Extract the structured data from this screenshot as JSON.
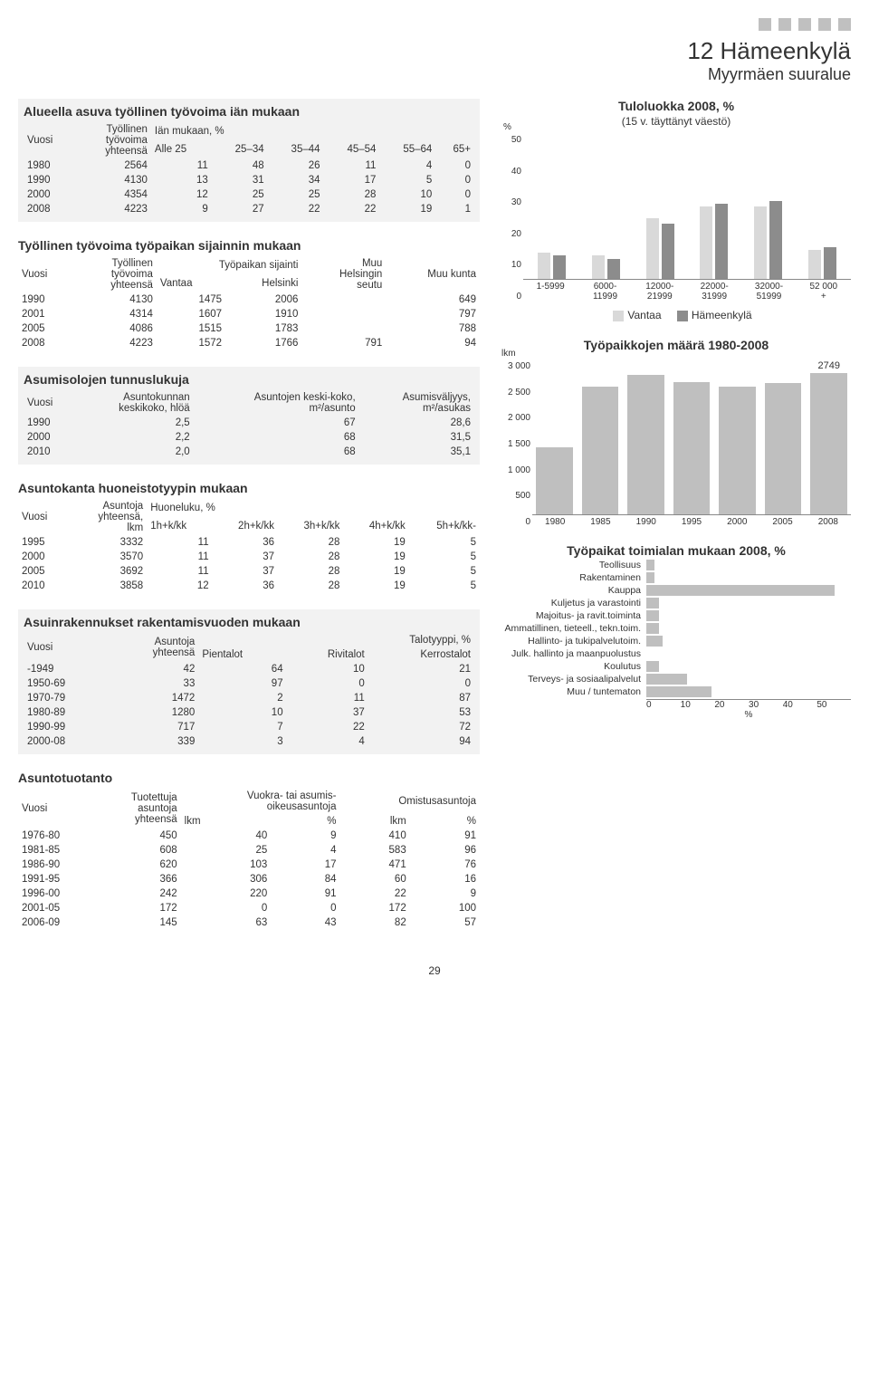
{
  "header": {
    "title": "12 Hämeenkylä",
    "subtitle": "Myyrmäen suuralue"
  },
  "page_number": "29",
  "colors": {
    "bar_light": "#d9d9d9",
    "bar_medium": "#bfbfbf",
    "bar_dark": "#8c8c8c",
    "grid": "#dddddd",
    "axis": "#888888",
    "bg_section": "#f2f2f2"
  },
  "tables": {
    "t1": {
      "title": "Alueella asuva työllinen työvoima iän mukaan",
      "h_vuosi": "Vuosi",
      "h_ty": "Työllinen\ntyövoima\nyhteensä",
      "h_age": "Iän mukaan, %",
      "cols": [
        "Alle 25",
        "25–34",
        "35–44",
        "45–54",
        "55–64",
        "65+"
      ],
      "rows": [
        [
          "1980",
          "2564",
          "11",
          "48",
          "26",
          "11",
          "4",
          "0"
        ],
        [
          "1990",
          "4130",
          "13",
          "31",
          "34",
          "17",
          "5",
          "0"
        ],
        [
          "2000",
          "4354",
          "12",
          "25",
          "25",
          "28",
          "10",
          "0"
        ],
        [
          "2008",
          "4223",
          "9",
          "27",
          "22",
          "22",
          "19",
          "1"
        ]
      ]
    },
    "t2": {
      "title": "Työllinen työvoima työpaikan sijainnin mukaan",
      "h_vuosi": "Vuosi",
      "h_ty": "Työllinen\ntyövoima\nyhteensä",
      "h_sij": "Työpaikan sijainti",
      "h_muu": "Muu\nHelsingin\nseutu",
      "cols": [
        "Vantaa",
        "Helsinki"
      ],
      "h_muuk": "Muu kunta",
      "rows": [
        [
          "1990",
          "4130",
          "1475",
          "2006",
          "",
          "649"
        ],
        [
          "2001",
          "4314",
          "1607",
          "1910",
          "",
          "797"
        ],
        [
          "2005",
          "4086",
          "1515",
          "1783",
          "",
          "788"
        ],
        [
          "2008",
          "4223",
          "1572",
          "1766",
          "791",
          "94"
        ]
      ]
    },
    "t3": {
      "title": "Asumisolojen tunnuslukuja",
      "h_vuosi": "Vuosi",
      "h_ak": "Asuntokunnan\nkeskikoko, hlöä",
      "h_kk": "Asuntojen keski-koko,\nm²/asunto",
      "h_av": "Asumisväljyys,\nm²/asukas",
      "rows": [
        [
          "1990",
          "2,5",
          "67",
          "28,6"
        ],
        [
          "2000",
          "2,2",
          "68",
          "31,5"
        ],
        [
          "2010",
          "2,0",
          "68",
          "35,1"
        ]
      ]
    },
    "t4": {
      "title": "Asuntokanta huoneistotyypin mukaan",
      "h_vuosi": "Vuosi",
      "h_as": "Asuntoja\nyhteensä,\nlkm",
      "h_hl": "Huoneluku, %",
      "cols": [
        "1h+k/kk",
        "2h+k/kk",
        "3h+k/kk",
        "4h+k/kk",
        "5h+k/kk-"
      ],
      "rows": [
        [
          "1995",
          "3332",
          "11",
          "36",
          "28",
          "19",
          "5"
        ],
        [
          "2000",
          "3570",
          "11",
          "37",
          "28",
          "19",
          "5"
        ],
        [
          "2005",
          "3692",
          "11",
          "37",
          "28",
          "19",
          "5"
        ],
        [
          "2010",
          "3858",
          "12",
          "36",
          "28",
          "19",
          "5"
        ]
      ]
    },
    "t5": {
      "title": "Asuinrakennukset rakentamisvuoden mukaan",
      "h_vuosi": "Vuosi",
      "h_as": "Asuntoja\nyhteensä",
      "h_tt": "Talotyyppi, %",
      "cols": [
        "Pientalot",
        "Rivitalot",
        "Kerrostalot"
      ],
      "rows": [
        [
          "-1949",
          "42",
          "64",
          "10",
          "21"
        ],
        [
          "1950-69",
          "33",
          "97",
          "0",
          "0"
        ],
        [
          "1970-79",
          "1472",
          "2",
          "11",
          "87"
        ],
        [
          "1980-89",
          "1280",
          "10",
          "37",
          "53"
        ],
        [
          "1990-99",
          "717",
          "7",
          "22",
          "72"
        ],
        [
          "2000-08",
          "339",
          "3",
          "4",
          "94"
        ]
      ]
    },
    "t6": {
      "title": "Asuntotuotanto",
      "h_vuosi": "Vuosi",
      "h_tuot": "Tuotettuja\nasuntoja\nyhteensä",
      "h_vuo": "Vuokra- tai asumis-\noikeusasuntoja",
      "h_om": "Omistusasuntoja",
      "sub_lkm": "lkm",
      "sub_pct": "%",
      "rows": [
        [
          "1976-80",
          "450",
          "40",
          "9",
          "410",
          "91"
        ],
        [
          "1981-85",
          "608",
          "25",
          "4",
          "583",
          "96"
        ],
        [
          "1986-90",
          "620",
          "103",
          "17",
          "471",
          "76"
        ],
        [
          "1991-95",
          "366",
          "306",
          "84",
          "60",
          "16"
        ],
        [
          "1996-00",
          "242",
          "220",
          "91",
          "22",
          "9"
        ],
        [
          "2001-05",
          "172",
          "0",
          "0",
          "172",
          "100"
        ],
        [
          "2006-09",
          "145",
          "63",
          "43",
          "82",
          "57"
        ]
      ]
    }
  },
  "charts": {
    "income": {
      "title": "Tuloluokka 2008, %",
      "subtitle": "(15 v. täyttänyt väestö)",
      "ylabel": "%",
      "ymax": 50,
      "yticks": [
        0,
        10,
        20,
        30,
        40,
        50
      ],
      "categories": [
        "1-5999",
        "6000-\n11999",
        "12000-\n21999",
        "22000-\n31999",
        "32000-\n51999",
        "52 000\n+"
      ],
      "vantaa": [
        9,
        8,
        21,
        25,
        25,
        10
      ],
      "area": [
        8,
        7,
        19,
        26,
        27,
        11
      ],
      "legend_a": "Vantaa",
      "legend_b": "Hämeenkylä",
      "color_a": "#d9d9d9",
      "color_b": "#8c8c8c"
    },
    "jobs": {
      "title": "Työpaikkojen määrä 1980-2008",
      "ylabel": "lkm",
      "ymax": 3000,
      "yticks": [
        0,
        500,
        1000,
        1500,
        2000,
        2500,
        3000
      ],
      "annot": "2749",
      "categories": [
        "1980",
        "1985",
        "1990",
        "1995",
        "2000",
        "2005",
        "2008"
      ],
      "values": [
        1300,
        2480,
        2720,
        2570,
        2490,
        2560,
        2749
      ],
      "color": "#bfbfbf"
    },
    "industry": {
      "title": "Työpaikat toimialan mukaan 2008, %",
      "xlabel": "%",
      "xmax": 50,
      "xticks": [
        0,
        10,
        20,
        30,
        40,
        50
      ],
      "categories": [
        "Teollisuus",
        "Rakentaminen",
        "Kauppa",
        "Kuljetus ja varastointi",
        "Majoitus- ja ravit.toiminta",
        "Ammatillinen, tieteell., tekn.toim.",
        "Hallinto- ja tukipalvelutoim.",
        "Julk. hallinto ja maanpuolustus",
        "Koulutus",
        "Terveys- ja sosiaalipalvelut",
        "Muu / tuntematon"
      ],
      "values": [
        2,
        2,
        46,
        3,
        3,
        3,
        4,
        0,
        3,
        10,
        16
      ],
      "color": "#bfbfbf"
    }
  }
}
